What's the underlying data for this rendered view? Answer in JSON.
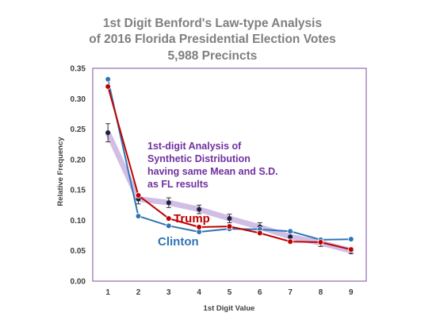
{
  "chart_data": {
    "type": "line",
    "title_lines": [
      "1st Digit Benford's Law-type  Analysis",
      "of 2016 Florida Presidential Election Votes",
      "5,988 Precincts"
    ],
    "xlabel": "1st Digit Value",
    "ylabel": "Relative Frequency",
    "x": [
      1,
      2,
      3,
      4,
      5,
      6,
      7,
      8,
      9
    ],
    "xlim": [
      0.5,
      9.5
    ],
    "ylim": [
      0,
      0.35
    ],
    "y_ticks": [
      0.0,
      0.05,
      0.1,
      0.15,
      0.2,
      0.25,
      0.3,
      0.35
    ],
    "y_tick_labels": [
      "0.00",
      "0.05",
      "0.10",
      "0.15",
      "0.20",
      "0.25",
      "0.30",
      "0.35"
    ],
    "x_tick_labels": [
      "1",
      "2",
      "3",
      "4",
      "5",
      "6",
      "7",
      "8",
      "9"
    ],
    "grid": false,
    "series": [
      {
        "name": "Synthetic",
        "style": "band",
        "color": "#c9b3e0",
        "values": [
          0.244,
          0.135,
          0.129,
          0.118,
          0.103,
          0.089,
          0.073,
          0.063,
          0.05
        ],
        "errors": [
          0.015,
          0.008,
          0.008,
          0.007,
          0.007,
          0.007,
          0.006,
          0.006,
          0.005
        ],
        "marker_color": "#1f2040"
      },
      {
        "name": "Clinton",
        "style": "line",
        "color": "#2e75b6",
        "values": [
          0.332,
          0.107,
          0.091,
          0.081,
          0.086,
          0.085,
          0.082,
          0.068,
          0.069
        ]
      },
      {
        "name": "Trump",
        "style": "line",
        "color": "#c00000",
        "values": [
          0.32,
          0.141,
          0.103,
          0.089,
          0.09,
          0.079,
          0.065,
          0.064,
          0.052
        ]
      }
    ],
    "annotations": {
      "synthetic_text": [
        "1st-digit Analysis of",
        "Synthetic Distribution",
        "having same Mean and S.D.",
        "as FL results"
      ],
      "synthetic_color": "#7030a0",
      "trump_label": "Trump",
      "trump_color": "#c00000",
      "clinton_label": "Clinton",
      "clinton_color": "#2e75b6"
    },
    "frame_color": "#7f4fa0"
  }
}
